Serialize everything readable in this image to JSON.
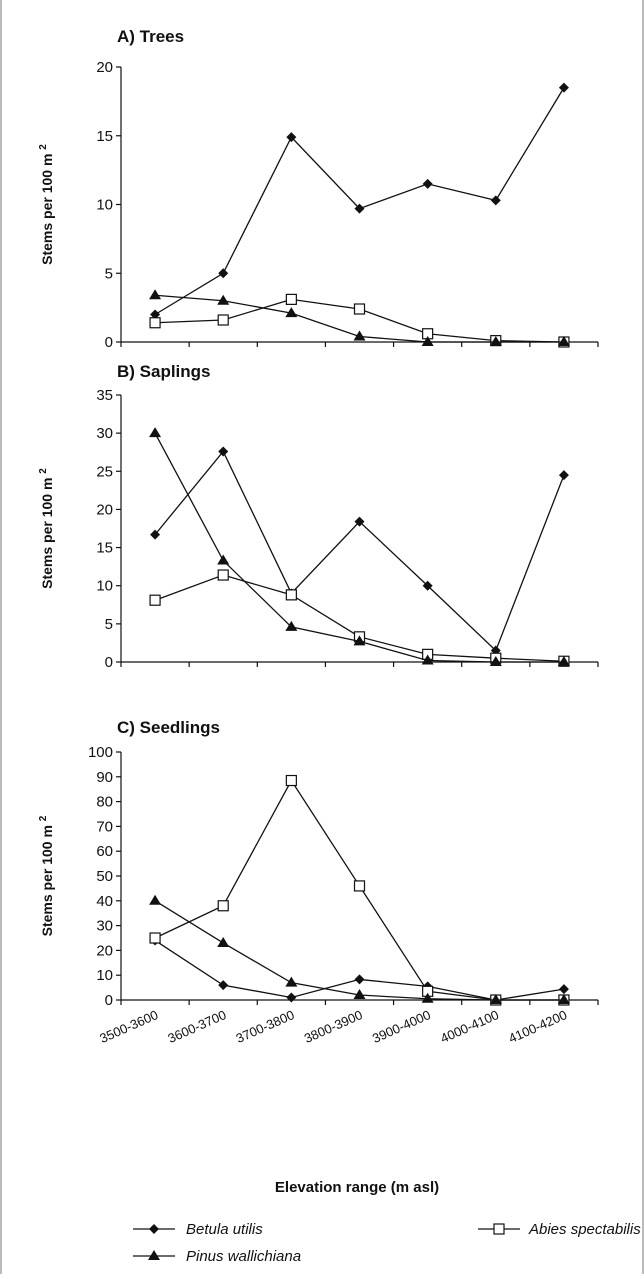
{
  "figure": {
    "xlabel": "Elevation range (m asl)",
    "ylabel_main": "Stems per 100 m",
    "ylabel_sup": "2"
  },
  "legend": {
    "items": [
      {
        "name": "Betula utilis",
        "marker": "diamond-filled"
      },
      {
        "name": "Abies spectabilis",
        "marker": "square-open"
      },
      {
        "name": "Pinus wallichiana",
        "marker": "triangle-filled"
      }
    ]
  },
  "chart_data": [
    {
      "type": "line",
      "title": "A) Trees",
      "categories": [
        "3500-3600",
        "3600-3700",
        "3700-3800",
        "3800-3900",
        "3900-4000",
        "4000-4100",
        "4100-4200"
      ],
      "ylim": [
        0,
        20
      ],
      "yticks": [
        0,
        5,
        10,
        15,
        20
      ],
      "ylabel": "Stems per 100 m2",
      "series": [
        {
          "name": "Betula utilis",
          "marker": "diamond-filled",
          "values": [
            2.0,
            5.0,
            14.9,
            9.7,
            11.5,
            10.3,
            18.5
          ]
        },
        {
          "name": "Abies spectabilis",
          "marker": "square-open",
          "values": [
            1.4,
            1.6,
            3.1,
            2.4,
            0.6,
            0.1,
            0.0
          ]
        },
        {
          "name": "Pinus wallichiana",
          "marker": "triangle-filled",
          "values": [
            3.4,
            3.0,
            2.1,
            0.4,
            0.0,
            0.0,
            0.0
          ]
        }
      ]
    },
    {
      "type": "line",
      "title": "B) Saplings",
      "categories": [
        "3500-3600",
        "3600-3700",
        "3700-3800",
        "3800-3900",
        "3900-4000",
        "4000-4100",
        "4100-4200"
      ],
      "ylim": [
        0,
        35
      ],
      "yticks": [
        0,
        5,
        10,
        15,
        20,
        25,
        30,
        35
      ],
      "ylabel": "Stems per 100 m2",
      "series": [
        {
          "name": "Betula utilis",
          "marker": "diamond-filled",
          "values": [
            16.7,
            27.6,
            9.0,
            18.4,
            10.0,
            1.5,
            24.5
          ]
        },
        {
          "name": "Abies spectabilis",
          "marker": "square-open",
          "values": [
            8.1,
            11.4,
            8.8,
            3.3,
            1.0,
            0.5,
            0.1
          ]
        },
        {
          "name": "Pinus wallichiana",
          "marker": "triangle-filled",
          "values": [
            30.0,
            13.3,
            4.6,
            2.7,
            0.2,
            0.0,
            0.0
          ]
        }
      ]
    },
    {
      "type": "line",
      "title": "C) Seedlings",
      "categories": [
        "3500-3600",
        "3600-3700",
        "3700-3800",
        "3800-3900",
        "3900-4000",
        "4000-4100",
        "4100-4200"
      ],
      "ylim": [
        0,
        100
      ],
      "yticks": [
        0,
        10,
        20,
        30,
        40,
        50,
        60,
        70,
        80,
        90,
        100
      ],
      "ylabel": "Stems per 100 m2",
      "xlabel": "Elevation range (m asl)",
      "series": [
        {
          "name": "Betula utilis",
          "marker": "diamond-filled",
          "values": [
            24.0,
            6.0,
            1.0,
            8.3,
            5.5,
            0.0,
            4.4
          ]
        },
        {
          "name": "Abies spectabilis",
          "marker": "square-open",
          "values": [
            25.0,
            38.0,
            88.5,
            46.0,
            3.5,
            0.0,
            0.0
          ]
        },
        {
          "name": "Pinus wallichiana",
          "marker": "triangle-filled",
          "values": [
            40.0,
            23.0,
            7.0,
            2.0,
            0.5,
            0.0,
            0.0
          ]
        }
      ]
    }
  ]
}
